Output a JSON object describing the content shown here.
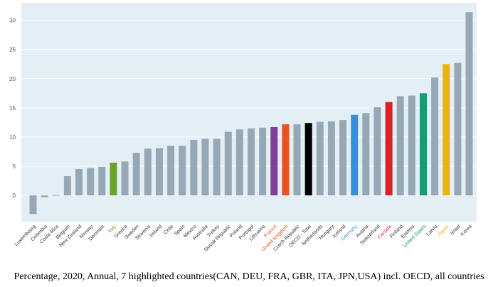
{
  "chart_data": {
    "type": "bar",
    "categories": [
      "Luxembourg",
      "Colombia",
      "Costa Rica",
      "Belgium",
      "New Zealand",
      "Norway",
      "Denmark",
      "Italy",
      "Greece",
      "Sweden",
      "Slovenia",
      "Ireland",
      "Chile",
      "Spain",
      "Mexico",
      "Australia",
      "Turkey",
      "Slovak Republic",
      "Poland",
      "Portugal",
      "Lithuania",
      "France",
      "United Kingdom",
      "Czech Republic",
      "OECD - Total",
      "Netherlands",
      "Hungary",
      "Iceland",
      "Germany",
      "Austria",
      "Switzerland",
      "Canada",
      "Finland",
      "Estonia",
      "United States",
      "Latvia",
      "Japan",
      "Israel",
      "Korea"
    ],
    "values": [
      -3.2,
      -0.3,
      0.0,
      3.3,
      4.5,
      4.7,
      4.9,
      5.6,
      5.8,
      7.3,
      8.0,
      8.1,
      8.5,
      8.5,
      9.5,
      9.7,
      9.7,
      10.9,
      11.3,
      11.5,
      11.6,
      11.7,
      12.2,
      12.2,
      12.4,
      12.6,
      12.7,
      12.9,
      13.8,
      14.1,
      15.1,
      16.0,
      17.0,
      17.1,
      17.5,
      20.2,
      22.5,
      22.7,
      31.4
    ],
    "bar_colors": [
      "#96a8b6",
      "#96a8b6",
      "#96a8b6",
      "#96a8b6",
      "#96a8b6",
      "#96a8b6",
      "#96a8b6",
      "#6aa329",
      "#96a8b6",
      "#96a8b6",
      "#96a8b6",
      "#96a8b6",
      "#96a8b6",
      "#96a8b6",
      "#96a8b6",
      "#96a8b6",
      "#96a8b6",
      "#96a8b6",
      "#96a8b6",
      "#96a8b6",
      "#96a8b6",
      "#7f3f98",
      "#e8531f",
      "#96a8b6",
      "#000000",
      "#96a8b6",
      "#96a8b6",
      "#96a8b6",
      "#3a8ed8",
      "#96a8b6",
      "#96a8b6",
      "#e02020",
      "#96a8b6",
      "#96a8b6",
      "#1b9a74",
      "#96a8b6",
      "#e9b40d",
      "#96a8b6",
      "#96a8b6"
    ],
    "label_colors": [
      "#333333",
      "#333333",
      "#333333",
      "#333333",
      "#333333",
      "#333333",
      "#333333",
      "#6aa329",
      "#333333",
      "#333333",
      "#333333",
      "#333333",
      "#333333",
      "#333333",
      "#333333",
      "#333333",
      "#333333",
      "#333333",
      "#333333",
      "#333333",
      "#333333",
      "#e8531f",
      "#e8531f",
      "#333333",
      "#333333",
      "#333333",
      "#333333",
      "#333333",
      "#3a8ed8",
      "#333333",
      "#333333",
      "#e02020",
      "#333333",
      "#333333",
      "#1b9a74",
      "#333333",
      "#e9b40d",
      "#333333",
      "#333333"
    ],
    "y_ticks": [
      0,
      5,
      10,
      15,
      20,
      25,
      30
    ],
    "ylim": [
      -4.5,
      33
    ],
    "grid": true,
    "colors": {
      "plot_bg": "#e4eef5",
      "gridline": "#ffffff",
      "tick_text": "#555555"
    }
  },
  "caption": "Percentage, 2020, Annual, 7 highlighted countries(CAN, DEU, FRA, GBR, ITA, JPN,USA) incl. OECD, all countries"
}
